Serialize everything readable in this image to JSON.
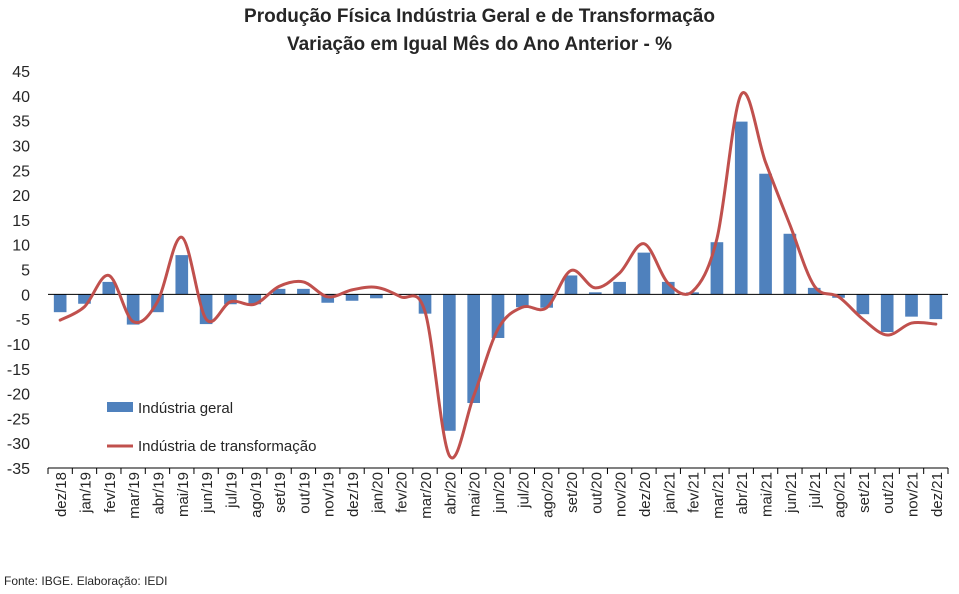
{
  "chart_data": {
    "type": "bar",
    "title": "Produção Física Indústria Geral e de Transformação",
    "subtitle": "Variação em Igual Mês do Ano Anterior - %",
    "categories": [
      "dez/18",
      "jan/19",
      "fev/19",
      "mar/19",
      "abr/19",
      "mai/19",
      "jun/19",
      "jul/19",
      "ago/19",
      "set/19",
      "out/19",
      "nov/19",
      "dez/19",
      "jan/20",
      "fev/20",
      "mar/20",
      "abr/20",
      "mai/20",
      "jun/20",
      "jul/20",
      "ago/20",
      "set/20",
      "out/20",
      "nov/20",
      "dez/20",
      "jan/21",
      "fev/21",
      "mar/21",
      "abr/21",
      "mai/21",
      "jun/21",
      "jul/21",
      "ago/21",
      "set/21",
      "out/21",
      "nov/21",
      "dez/21"
    ],
    "series": [
      {
        "name": "Indústria geral",
        "kind": "bar",
        "color": "#4f81bd",
        "values": [
          -3.6,
          -1.9,
          2.5,
          -6.1,
          -3.6,
          7.9,
          -6.0,
          -2.0,
          -2.0,
          1.1,
          1.1,
          -1.7,
          -1.3,
          -0.8,
          -0.1,
          -3.9,
          -27.5,
          -21.9,
          -8.8,
          -2.6,
          -2.7,
          3.8,
          0.4,
          2.5,
          8.4,
          2.5,
          0.4,
          10.5,
          34.8,
          24.3,
          12.2,
          1.3,
          -0.7,
          -4.0,
          -7.6,
          -4.5,
          -5.0
        ]
      },
      {
        "name": "Indústria de transformação",
        "kind": "line",
        "color": "#c0504d",
        "values": [
          -5.2,
          -2.5,
          3.8,
          -5.5,
          -1.5,
          11.5,
          -5.0,
          -1.5,
          -2.0,
          1.6,
          2.5,
          -0.5,
          0.9,
          1.4,
          -0.5,
          -3.5,
          -32.5,
          -20.5,
          -7.0,
          -2.6,
          -2.7,
          4.8,
          1.3,
          4.3,
          10.2,
          2.2,
          0.6,
          11.2,
          40.3,
          26.6,
          14.0,
          1.7,
          -0.5,
          -5.0,
          -8.2,
          -5.8,
          -6.0
        ]
      }
    ],
    "ylim": [
      -35,
      45
    ],
    "yticks": [
      -35,
      -30,
      -25,
      -20,
      -15,
      -10,
      -5,
      0,
      5,
      10,
      15,
      20,
      25,
      30,
      35,
      40,
      45
    ],
    "xlabel": "",
    "ylabel": "",
    "grid": false,
    "legend_position": "bottom-left"
  },
  "source": "Fonte: IBGE. Elaboração: IEDI"
}
